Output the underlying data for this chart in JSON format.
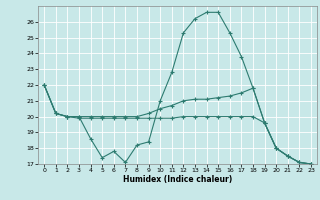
{
  "background_color": "#c8e8e8",
  "grid_color": "#ffffff",
  "line_color": "#2d7b70",
  "xlim": [
    -0.5,
    23.5
  ],
  "ylim": [
    17,
    27
  ],
  "yticks": [
    17,
    18,
    19,
    20,
    21,
    22,
    23,
    24,
    25,
    26
  ],
  "xticks": [
    0,
    1,
    2,
    3,
    4,
    5,
    6,
    7,
    8,
    9,
    10,
    11,
    12,
    13,
    14,
    15,
    16,
    17,
    18,
    19,
    20,
    21,
    22,
    23
  ],
  "xlabel": "Humidex (Indice chaleur)",
  "line1_y": [
    22.0,
    20.2,
    20.0,
    20.0,
    18.6,
    17.4,
    17.8,
    17.1,
    18.2,
    18.4,
    21.0,
    22.8,
    25.3,
    26.2,
    26.6,
    26.6,
    25.3,
    23.8,
    21.8,
    19.6,
    18.0,
    17.5,
    17.1,
    17.0
  ],
  "line2_y": [
    22.0,
    20.2,
    20.0,
    20.0,
    20.0,
    20.0,
    20.0,
    20.0,
    20.0,
    20.2,
    20.5,
    20.7,
    21.0,
    21.1,
    21.1,
    21.2,
    21.3,
    21.5,
    21.8,
    19.6,
    18.0,
    17.5,
    17.1,
    17.0
  ],
  "line3_y": [
    22.0,
    20.2,
    20.0,
    19.9,
    19.9,
    19.9,
    19.9,
    19.9,
    19.9,
    19.9,
    19.9,
    19.9,
    20.0,
    20.0,
    20.0,
    20.0,
    20.0,
    20.0,
    20.0,
    19.6,
    18.0,
    17.5,
    17.1,
    17.0
  ]
}
